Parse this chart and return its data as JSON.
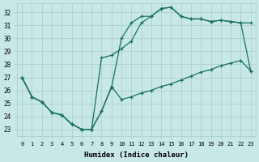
{
  "xlabel": "Humidex (Indice chaleur)",
  "bg_color": "#c8e8e8",
  "grid_color": "#b0d0d0",
  "line_color": "#1a7060",
  "xlim": [
    -0.5,
    23.5
  ],
  "ylim": [
    22.5,
    32.7
  ],
  "xticks": [
    0,
    1,
    2,
    3,
    4,
    5,
    6,
    7,
    8,
    9,
    10,
    11,
    12,
    13,
    14,
    15,
    16,
    17,
    18,
    19,
    20,
    21,
    22,
    23
  ],
  "yticks": [
    23,
    24,
    25,
    26,
    27,
    28,
    29,
    30,
    31,
    32
  ],
  "line1_x": [
    0,
    1,
    2,
    3,
    4,
    5,
    6,
    7,
    8,
    9,
    10,
    11,
    12,
    13,
    14,
    15,
    16,
    17,
    18,
    19,
    20,
    21,
    22,
    23
  ],
  "line1_y": [
    27,
    25.5,
    25.1,
    24.3,
    24.1,
    23.4,
    23.0,
    23.0,
    28.5,
    28.7,
    29.2,
    29.8,
    31.2,
    31.7,
    32.3,
    32.4,
    31.7,
    31.5,
    31.5,
    31.3,
    31.4,
    31.3,
    31.2,
    27.5
  ],
  "line2_x": [
    0,
    1,
    2,
    3,
    4,
    5,
    6,
    7,
    8,
    9,
    10,
    11,
    12,
    13,
    14,
    15,
    16,
    17,
    18,
    19,
    20,
    21,
    22,
    23
  ],
  "line2_y": [
    27,
    25.5,
    25.1,
    24.3,
    24.1,
    23.4,
    23.0,
    23.0,
    24.4,
    26.2,
    30.0,
    31.2,
    31.7,
    31.7,
    32.3,
    32.4,
    31.7,
    31.5,
    31.5,
    31.3,
    31.4,
    31.3,
    31.2,
    31.2
  ],
  "line3_x": [
    0,
    1,
    2,
    3,
    4,
    5,
    6,
    7,
    8,
    9,
    10,
    11,
    12,
    13,
    14,
    15,
    16,
    17,
    18,
    19,
    20,
    21,
    22,
    23
  ],
  "line3_y": [
    27,
    25.5,
    25.1,
    24.3,
    24.1,
    23.4,
    23.0,
    23.0,
    24.4,
    26.3,
    25.3,
    25.5,
    25.8,
    26.0,
    26.3,
    26.5,
    26.8,
    27.1,
    27.4,
    27.6,
    27.9,
    28.1,
    28.3,
    27.5
  ]
}
